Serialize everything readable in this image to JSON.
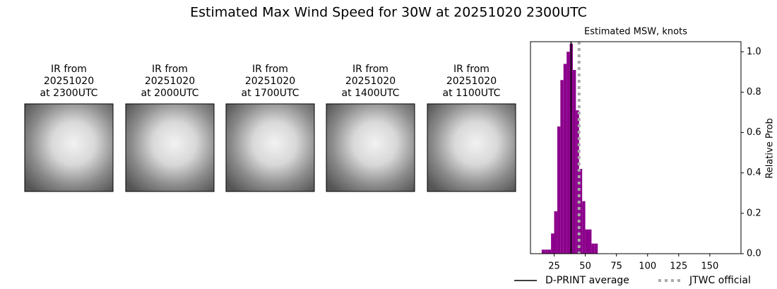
{
  "title": "Estimated Max Wind Speed for 30W at 20251020 2300UTC",
  "images": [
    {
      "title": [
        "IR from",
        "20251020",
        "at 2300UTC"
      ]
    },
    {
      "title": [
        "IR from",
        "20251020",
        "at 2000UTC"
      ]
    },
    {
      "title": [
        "IR from",
        "20251020",
        "at 1700UTC"
      ]
    },
    {
      "title": [
        "IR from",
        "20251020",
        "at 1400UTC"
      ]
    },
    {
      "title": [
        "IR from",
        "20251020",
        "at 1100UTC"
      ]
    }
  ],
  "chart_data": {
    "type": "histogram",
    "title": "Estimated MSW, knots",
    "y_label": "Relative Prob",
    "bins": [
      15,
      17.5,
      20,
      22.5,
      25,
      27.5,
      30,
      32.5,
      35,
      37.5,
      40,
      42.5,
      45,
      47.5,
      50,
      52.5,
      55,
      57.5,
      60
    ],
    "values": [
      0.02,
      0.02,
      0.02,
      0.1,
      0.21,
      0.63,
      0.86,
      0.94,
      1.0,
      1.04,
      0.91,
      0.71,
      0.42,
      0.26,
      0.12,
      0.12,
      0.05,
      0.05
    ],
    "color": "#8b008b",
    "xlim": [
      6,
      175
    ],
    "ylim": [
      0,
      1.05
    ],
    "xticks": [
      25,
      50,
      75,
      100,
      125,
      150
    ],
    "yticks": [
      {
        "value": 0,
        "label": "0.0"
      },
      0.2,
      0.4,
      0.6,
      0.8,
      {
        "value": 1,
        "label": "1.0"
      }
    ],
    "vlines": [
      {
        "name": "D-PRINT average",
        "x": 38.6,
        "color": "#000000",
        "style": "solid"
      },
      {
        "name": "JTWC official",
        "x": 45,
        "color": "#aaaaaa",
        "style": "dotted"
      }
    ]
  }
}
